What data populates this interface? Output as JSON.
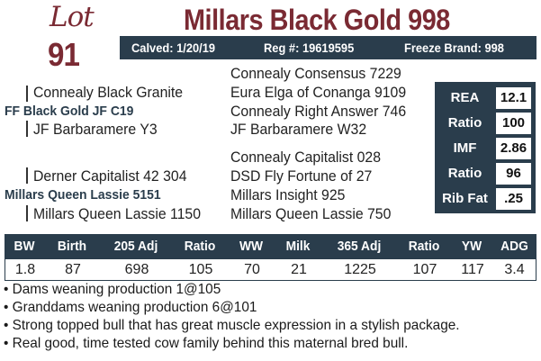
{
  "lot": {
    "word": "Lot",
    "number": "91"
  },
  "title": "Millars Black Gold 998",
  "info": {
    "calved": "Calved: 1/20/19",
    "reg": "Reg #: 19619595",
    "freeze_brand": "Freeze Brand: 998"
  },
  "pedigree": {
    "sire_sire": "Connealy Black Granite",
    "sire_sire_sire": "Connealy Consensus 7229",
    "sire_sire_dam": "Eura Elga of Conanga 9109",
    "sire": "FF Black Gold JF C19",
    "sire_dam_sire": "Connealy Right Answer 746",
    "sire_dam": "JF Barbaramere Y3",
    "sire_dam_dam": "JF Barbaramere W32",
    "dam_sire_sire": "Connealy Capitalist 028",
    "dam_sire": "Derner Capitalist 42 304",
    "dam_sire_dam": "DSD Fly Fortune of 27",
    "dam": "Millars Queen Lassie 5151",
    "dam_dam_sire": "Millars Insight 925",
    "dam_dam": "Millars Queen Lassie 1150",
    "dam_dam_dam": "Millars Queen Lassie 750"
  },
  "stats": [
    {
      "label": "REA",
      "value": "12.1"
    },
    {
      "label": "Ratio",
      "value": "100"
    },
    {
      "label": "IMF",
      "value": "2.86"
    },
    {
      "label": "Ratio",
      "value": "96"
    },
    {
      "label": "Rib Fat",
      "value": ".25"
    }
  ],
  "epd": {
    "headers": [
      "BW",
      "Birth",
      "205 Adj",
      "Ratio",
      "WW",
      "Milk",
      "365 Adj",
      "Ratio",
      "YW",
      "ADG"
    ],
    "values": [
      "1.8",
      "87",
      "698",
      "105",
      "70",
      "21",
      "1225",
      "107",
      "117",
      "3.4"
    ]
  },
  "notes": [
    "• Dams weaning production 1@105",
    "• Granddams weaning production 6@101",
    "• Strong topped bull that has great muscle expression in a stylish package.",
    "• Real good, time tested cow family behind this maternal bred bull."
  ]
}
